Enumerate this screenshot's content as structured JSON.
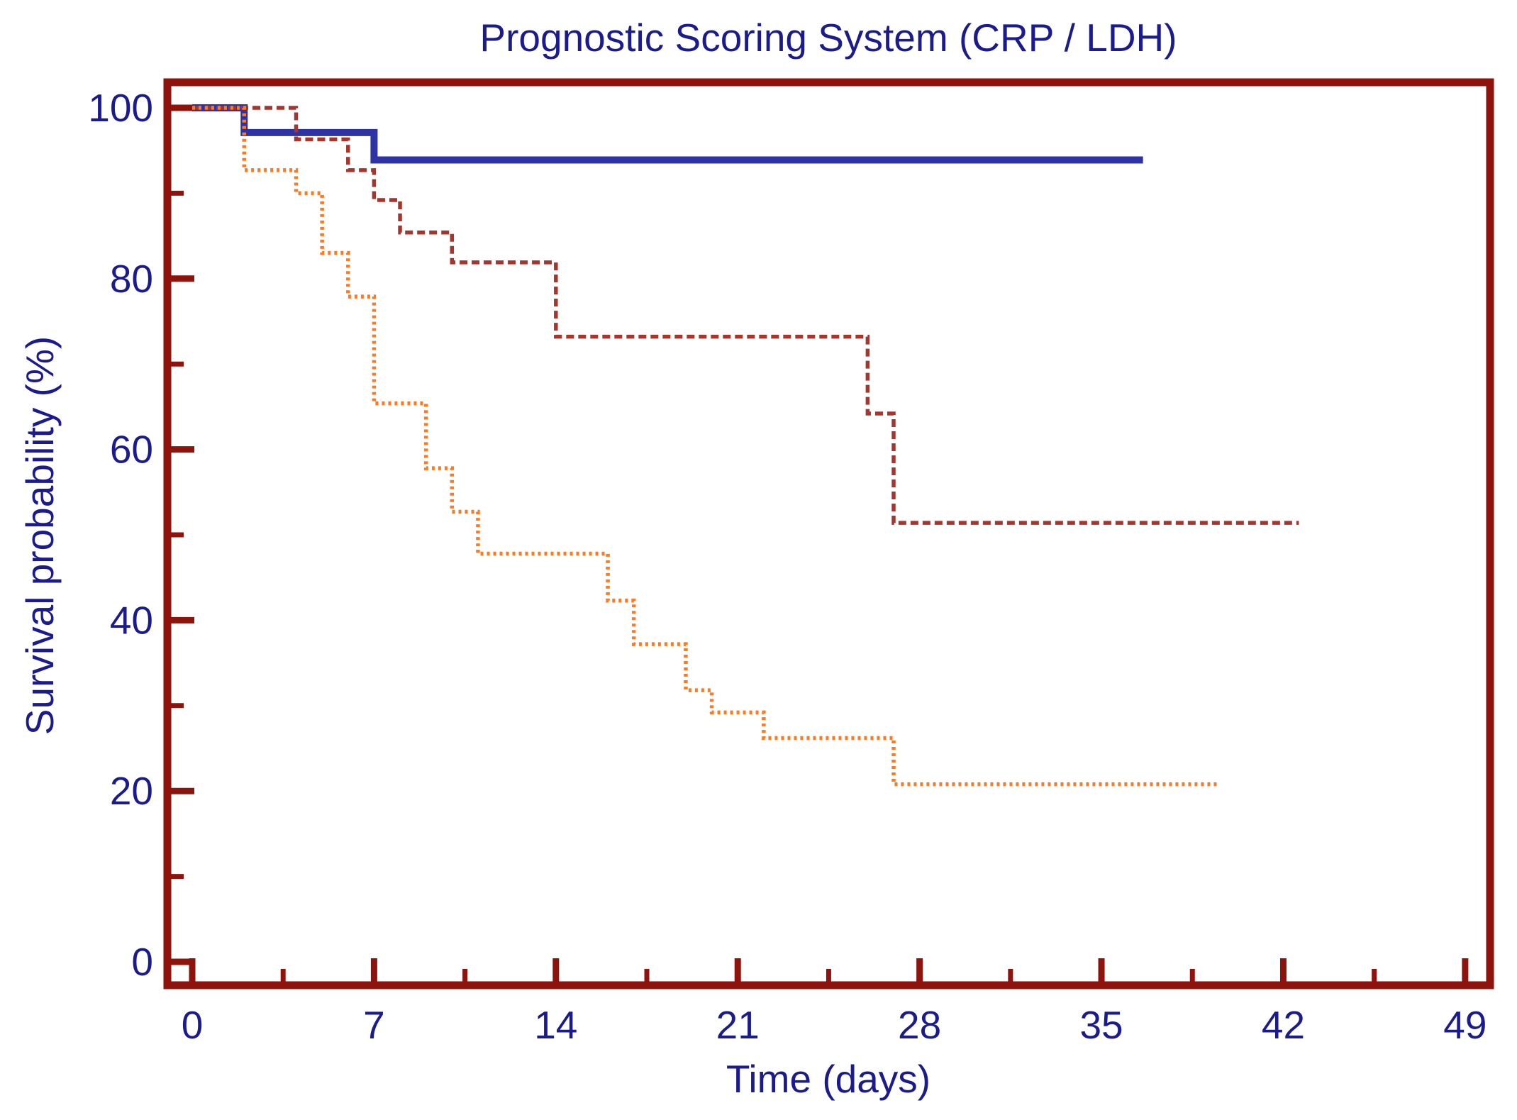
{
  "title": "Prognostic Scoring System (CRP / LDH)",
  "colors": {
    "frame_and_ticks": "#8e130c",
    "text_navy": "#1b1b8e",
    "series_solid_blue": "#2d33a5",
    "series_dashed_dark_red": "#a6352d",
    "series_dotted_orange": "#fb7a22",
    "background": "#ffffff"
  },
  "chart_data": {
    "type": "line",
    "subtype": "kaplan-meier-step-curves",
    "title": "Prognostic Scoring System (CRP / LDH)",
    "xlabel": "Time (days)",
    "ylabel": "Survival probability (%)",
    "xlim": [
      0,
      49
    ],
    "ylim": [
      0,
      100
    ],
    "x_major_ticks": [
      0,
      7,
      14,
      21,
      28,
      35,
      42,
      49
    ],
    "x_minor_ticks": [
      3.5,
      10.5,
      17.5,
      24.5,
      31.5,
      38.5,
      45.5
    ],
    "y_major_ticks": [
      100,
      80,
      60,
      40,
      20,
      0
    ],
    "y_minor_ticks": [
      90,
      70,
      50,
      30,
      10
    ],
    "grid": false,
    "legend_position": "none",
    "series": [
      {
        "name": "solid-blue-curve",
        "style": "solid",
        "color": "#2d33a5",
        "stroke_width": 10,
        "dash": null,
        "steps": [
          [
            0,
            100
          ],
          [
            2,
            97.1
          ],
          [
            7,
            93.9
          ]
        ],
        "end_day": 36.6
      },
      {
        "name": "dashed-dark-red-curve",
        "style": "dashed",
        "color": "#a6352d",
        "stroke_width": 5.5,
        "dash": [
          11,
          6
        ],
        "steps": [
          [
            0,
            100
          ],
          [
            4,
            96.3
          ],
          [
            6,
            92.7
          ],
          [
            7,
            89.2
          ],
          [
            8,
            85.4
          ],
          [
            10,
            81.9
          ],
          [
            14,
            73.2
          ],
          [
            26,
            64.2
          ],
          [
            27,
            51.4
          ]
        ],
        "end_day": 42.6
      },
      {
        "name": "dotted-orange-curve",
        "style": "dotted",
        "color": "#fb7a22",
        "stroke_width": 5.5,
        "dash": [
          4,
          5
        ],
        "steps": [
          [
            0,
            100
          ],
          [
            2,
            92.7
          ],
          [
            4,
            90.0
          ],
          [
            5,
            83.0
          ],
          [
            6,
            77.9
          ],
          [
            7,
            65.4
          ],
          [
            9,
            57.8
          ],
          [
            10,
            52.7
          ],
          [
            11,
            47.8
          ],
          [
            16,
            42.3
          ],
          [
            17,
            37.2
          ],
          [
            19,
            31.8
          ],
          [
            20,
            29.2
          ],
          [
            22,
            26.2
          ],
          [
            27,
            20.8
          ]
        ],
        "end_day": 39.5
      }
    ]
  }
}
